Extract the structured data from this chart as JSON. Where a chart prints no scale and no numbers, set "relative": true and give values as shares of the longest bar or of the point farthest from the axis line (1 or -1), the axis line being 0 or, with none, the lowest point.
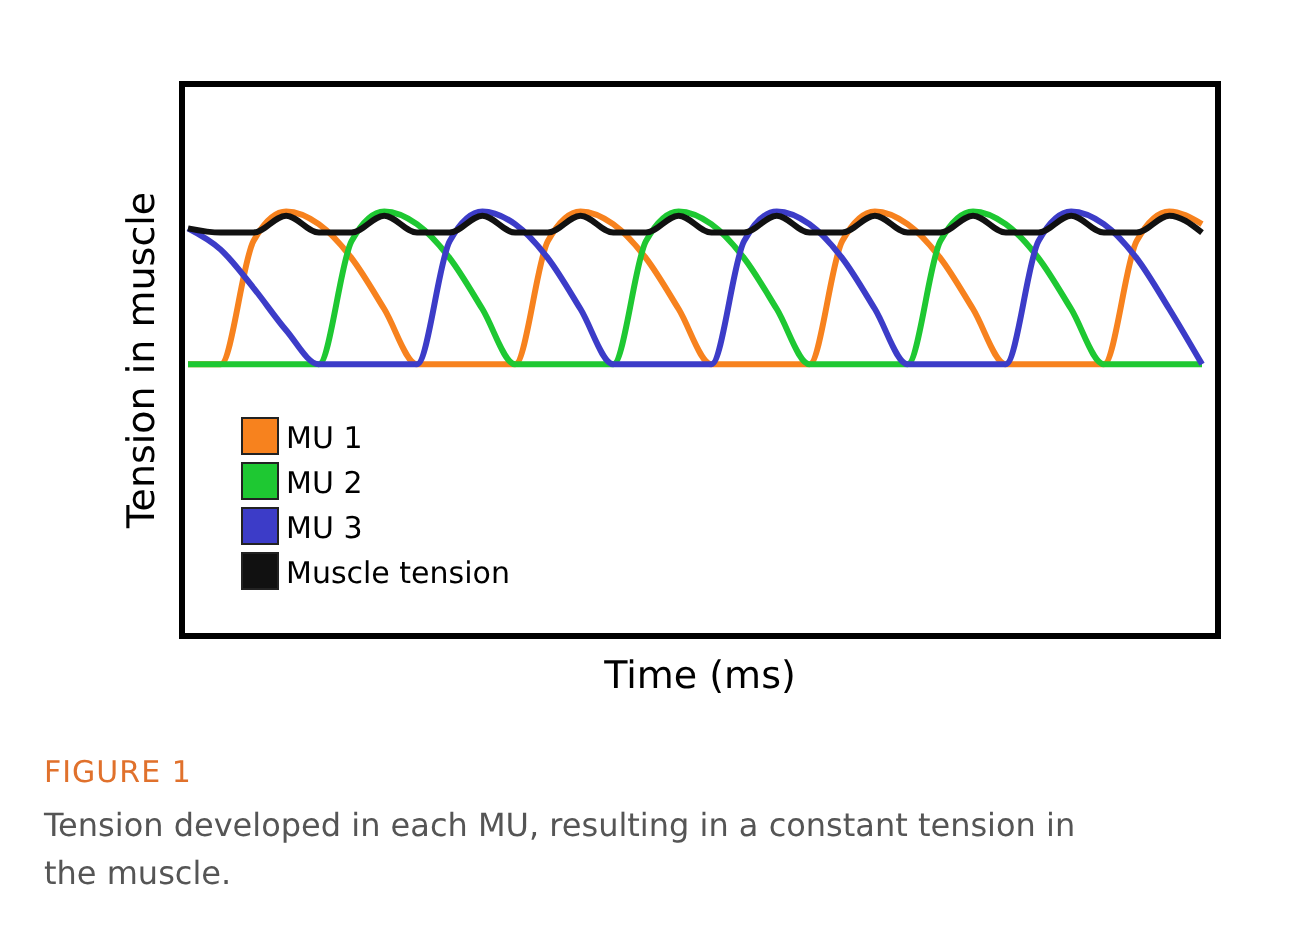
{
  "chart_data": {
    "type": "line",
    "relative": true,
    "xlabel": "Time (ms)",
    "ylabel": "Tension in muscle",
    "legend": "bottom left",
    "marker": "none",
    "line_style": "solid",
    "categories": [
      null,
      null,
      null,
      null,
      null,
      null,
      null,
      null,
      null,
      null,
      null,
      null,
      null,
      null,
      null,
      null,
      null,
      null,
      null,
      null,
      null,
      null,
      null,
      null,
      null,
      null,
      null,
      null,
      null,
      null,
      null,
      null
    ],
    "series": [
      {
        "name": "MU 1",
        "color": "#f7821e",
        "values": [
          0.64,
          0.64,
          0.93,
          1.0,
          0.97,
          0.89,
          0.77,
          0.64,
          0.64,
          0.64,
          0.64,
          0.93,
          1.0,
          0.97,
          0.89,
          0.77,
          0.64,
          0.64,
          0.64,
          0.64,
          0.93,
          1.0,
          0.97,
          0.89,
          0.77,
          0.64,
          0.64,
          0.64,
          0.64,
          0.93,
          1.0,
          0.97
        ]
      },
      {
        "name": "MU 2",
        "color": "#1ec832",
        "values": [
          0.64,
          0.64,
          0.64,
          0.64,
          0.64,
          0.93,
          1.0,
          0.97,
          0.89,
          0.77,
          0.64,
          0.64,
          0.64,
          0.64,
          0.93,
          1.0,
          0.97,
          0.89,
          0.77,
          0.64,
          0.64,
          0.64,
          0.64,
          0.93,
          1.0,
          0.97,
          0.89,
          0.77,
          0.64,
          0.64,
          0.64,
          0.64
        ]
      },
      {
        "name": "MU 3",
        "color": "#3c3cc8",
        "values": [
          0.96,
          0.91,
          0.82,
          0.72,
          0.64,
          0.64,
          0.64,
          0.64,
          0.93,
          1.0,
          0.97,
          0.89,
          0.77,
          0.64,
          0.64,
          0.64,
          0.64,
          0.93,
          1.0,
          0.97,
          0.89,
          0.77,
          0.64,
          0.64,
          0.64,
          0.64,
          0.93,
          1.0,
          0.97,
          0.89,
          0.77,
          0.64
        ]
      },
      {
        "name": "Muscle tension",
        "color": "#111111",
        "values": [
          0.96,
          0.95,
          0.95,
          0.99,
          0.95,
          0.95,
          0.99,
          0.95,
          0.95,
          0.99,
          0.95,
          0.95,
          0.99,
          0.95,
          0.95,
          0.99,
          0.95,
          0.95,
          0.99,
          0.95,
          0.95,
          0.99,
          0.95,
          0.95,
          0.99,
          0.95,
          0.95,
          0.99,
          0.95,
          0.95,
          0.99,
          0.95
        ]
      }
    ],
    "annotations": [
      "FIGURE 1",
      "Tension developed in each MU, resulting in a constant tension in the muscle."
    ]
  }
}
